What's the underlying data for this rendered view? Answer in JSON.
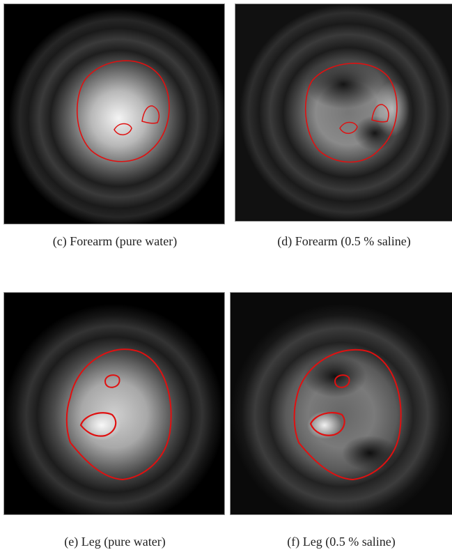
{
  "panels": [
    {
      "caption": "(c) Forearm (pure water)"
    },
    {
      "caption": "(d) Forearm (0.5 % saline)"
    },
    {
      "caption": "(e) Leg (pure water)"
    },
    {
      "caption": "(f) Leg (0.5 % saline)"
    }
  ]
}
